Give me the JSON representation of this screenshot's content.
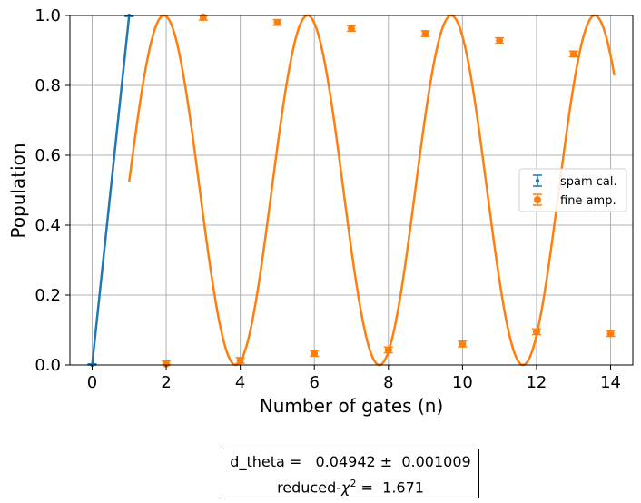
{
  "chart_data": {
    "type": "scatter",
    "xlabel": "Number of gates (n)",
    "ylabel": "Population",
    "xlim": [
      -0.6,
      14.6
    ],
    "ylim": [
      0.0,
      1.0
    ],
    "xticks": [
      0,
      2,
      4,
      6,
      8,
      10,
      12,
      14
    ],
    "yticks": [
      0.0,
      0.2,
      0.4,
      0.6,
      0.8,
      1.0
    ],
    "xtick_labels": [
      "0",
      "2",
      "4",
      "6",
      "8",
      "10",
      "12",
      "14"
    ],
    "ytick_labels": [
      "0.0",
      "0.2",
      "0.4",
      "0.6",
      "0.8",
      "1.0"
    ],
    "grid": true,
    "legend_position": "center-right",
    "series": [
      {
        "name": "spam cal.",
        "color": "#1f77b4",
        "marker": "dot",
        "x": [
          0,
          1
        ],
        "y": [
          0.0,
          1.0
        ],
        "yerr": [
          0.003,
          0.003
        ],
        "fit_line": {
          "x": [
            0,
            1
          ],
          "y": [
            0.0,
            1.0
          ]
        }
      },
      {
        "name": "fine amp.",
        "color": "#ff7f0e",
        "marker": "circle",
        "x": [
          2,
          3,
          4,
          5,
          6,
          7,
          8,
          9,
          10,
          11,
          12,
          13,
          14
        ],
        "y": [
          0.003,
          0.995,
          0.013,
          0.98,
          0.033,
          0.963,
          0.043,
          0.948,
          0.06,
          0.928,
          0.095,
          0.89,
          0.09
        ],
        "yerr": [
          0.008,
          0.008,
          0.008,
          0.008,
          0.008,
          0.008,
          0.008,
          0.008,
          0.008,
          0.008,
          0.008,
          0.008,
          0.008
        ],
        "fit": {
          "type": "cosine",
          "d_theta": 0.04942,
          "x_range": [
            1,
            14.1
          ]
        }
      }
    ]
  },
  "fit_report": {
    "line1": "d_theta =   0.04942 ±  0.001009",
    "line2_prefix": "reduced-",
    "line2_symbol": "χ",
    "line2_sup": "2",
    "line2_suffix": " =  1.671"
  }
}
